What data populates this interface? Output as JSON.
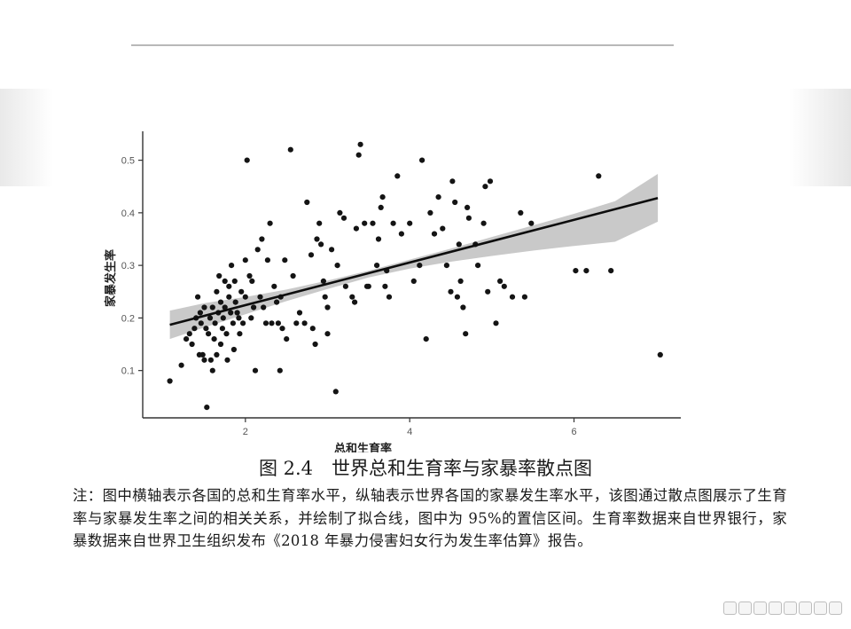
{
  "caption": "图 2.4　世界总和生育率与家暴率散点图",
  "note": "注：图中横轴表示各国的总和生育率水平，纵轴表示世界各国的家暴发生率水平，该图通过散点图展示了生育率与家暴发生率之间的相关关系，并绘制了拟合线，图中为 95%的置信区间。生育率数据来自世界银行，家暴数据来自世界卫生组织发布《2018 年暴力侵害妇女行为发生率估算》报告。",
  "chart_data": {
    "type": "scatter",
    "xlabel": "总和生育率",
    "ylabel": "家暴发生率",
    "xlim": [
      0.75,
      7.3
    ],
    "ylim": [
      0.01,
      0.555
    ],
    "x_ticks": [
      2,
      4,
      6
    ],
    "y_ticks": [
      0.1,
      0.2,
      0.3,
      0.4,
      0.5
    ],
    "x_tick_labels": [
      "2",
      "4",
      "6"
    ],
    "y_tick_labels": [
      "0.1",
      "0.2",
      "0.3",
      "0.4",
      "0.5"
    ],
    "grid": false,
    "fit_line": {
      "x": [
        1.08,
        7.02
      ],
      "y": [
        0.187,
        0.428
      ]
    },
    "confidence_band": {
      "label": "95%",
      "x": [
        1.08,
        1.5,
        2.0,
        2.5,
        3.0,
        3.5,
        4.0,
        4.5,
        5.0,
        5.5,
        6.0,
        6.5,
        7.02
      ],
      "lower": [
        0.16,
        0.182,
        0.207,
        0.232,
        0.255,
        0.277,
        0.294,
        0.307,
        0.318,
        0.328,
        0.337,
        0.345,
        0.383
      ],
      "upper": [
        0.214,
        0.228,
        0.24,
        0.254,
        0.271,
        0.29,
        0.311,
        0.332,
        0.354,
        0.376,
        0.398,
        0.422,
        0.474
      ]
    },
    "points": [
      [
        1.08,
        0.08
      ],
      [
        1.22,
        0.11
      ],
      [
        1.28,
        0.16
      ],
      [
        1.32,
        0.17
      ],
      [
        1.35,
        0.15
      ],
      [
        1.38,
        0.18
      ],
      [
        1.4,
        0.2
      ],
      [
        1.42,
        0.24
      ],
      [
        1.44,
        0.13
      ],
      [
        1.45,
        0.21
      ],
      [
        1.46,
        0.19
      ],
      [
        1.48,
        0.13
      ],
      [
        1.5,
        0.22
      ],
      [
        1.5,
        0.12
      ],
      [
        1.52,
        0.18
      ],
      [
        1.53,
        0.03
      ],
      [
        1.55,
        0.17
      ],
      [
        1.57,
        0.2
      ],
      [
        1.58,
        0.12
      ],
      [
        1.6,
        0.1
      ],
      [
        1.6,
        0.22
      ],
      [
        1.62,
        0.16
      ],
      [
        1.63,
        0.19
      ],
      [
        1.65,
        0.25
      ],
      [
        1.65,
        0.13
      ],
      [
        1.67,
        0.21
      ],
      [
        1.68,
        0.28
      ],
      [
        1.7,
        0.23
      ],
      [
        1.7,
        0.15
      ],
      [
        1.72,
        0.18
      ],
      [
        1.73,
        0.2
      ],
      [
        1.75,
        0.27
      ],
      [
        1.75,
        0.22
      ],
      [
        1.77,
        0.17
      ],
      [
        1.78,
        0.12
      ],
      [
        1.8,
        0.24
      ],
      [
        1.8,
        0.26
      ],
      [
        1.82,
        0.21
      ],
      [
        1.83,
        0.3
      ],
      [
        1.85,
        0.19
      ],
      [
        1.86,
        0.14
      ],
      [
        1.87,
        0.27
      ],
      [
        1.88,
        0.23
      ],
      [
        1.9,
        0.21
      ],
      [
        1.92,
        0.2
      ],
      [
        1.93,
        0.17
      ],
      [
        1.95,
        0.25
      ],
      [
        1.97,
        0.19
      ],
      [
        2.0,
        0.31
      ],
      [
        2.0,
        0.24
      ],
      [
        2.02,
        0.5
      ],
      [
        2.05,
        0.28
      ],
      [
        2.07,
        0.2
      ],
      [
        2.08,
        0.27
      ],
      [
        2.1,
        0.22
      ],
      [
        2.12,
        0.1
      ],
      [
        2.15,
        0.33
      ],
      [
        2.18,
        0.24
      ],
      [
        2.2,
        0.35
      ],
      [
        2.22,
        0.22
      ],
      [
        2.25,
        0.19
      ],
      [
        2.27,
        0.31
      ],
      [
        2.3,
        0.38
      ],
      [
        2.32,
        0.19
      ],
      [
        2.35,
        0.26
      ],
      [
        2.38,
        0.23
      ],
      [
        2.4,
        0.19
      ],
      [
        2.42,
        0.1
      ],
      [
        2.43,
        0.24
      ],
      [
        2.45,
        0.18
      ],
      [
        2.48,
        0.31
      ],
      [
        2.5,
        0.16
      ],
      [
        2.55,
        0.52
      ],
      [
        2.58,
        0.28
      ],
      [
        2.62,
        0.19
      ],
      [
        2.66,
        0.21
      ],
      [
        2.72,
        0.19
      ],
      [
        2.75,
        0.42
      ],
      [
        2.8,
        0.32
      ],
      [
        2.82,
        0.18
      ],
      [
        2.85,
        0.15
      ],
      [
        2.87,
        0.35
      ],
      [
        2.9,
        0.38
      ],
      [
        2.92,
        0.34
      ],
      [
        2.95,
        0.27
      ],
      [
        2.97,
        0.24
      ],
      [
        3.0,
        0.17
      ],
      [
        3.0,
        0.22
      ],
      [
        3.05,
        0.33
      ],
      [
        3.1,
        0.06
      ],
      [
        3.12,
        0.3
      ],
      [
        3.15,
        0.4
      ],
      [
        3.2,
        0.39
      ],
      [
        3.22,
        0.26
      ],
      [
        3.3,
        0.24
      ],
      [
        3.33,
        0.23
      ],
      [
        3.35,
        0.37
      ],
      [
        3.38,
        0.51
      ],
      [
        3.4,
        0.53
      ],
      [
        3.45,
        0.38
      ],
      [
        3.48,
        0.26
      ],
      [
        3.5,
        0.26
      ],
      [
        3.55,
        0.38
      ],
      [
        3.6,
        0.3
      ],
      [
        3.62,
        0.35
      ],
      [
        3.65,
        0.41
      ],
      [
        3.67,
        0.43
      ],
      [
        3.7,
        0.26
      ],
      [
        3.72,
        0.29
      ],
      [
        3.75,
        0.24
      ],
      [
        3.8,
        0.38
      ],
      [
        3.85,
        0.47
      ],
      [
        3.9,
        0.36
      ],
      [
        4.0,
        0.38
      ],
      [
        4.05,
        0.27
      ],
      [
        4.12,
        0.3
      ],
      [
        4.15,
        0.5
      ],
      [
        4.2,
        0.16
      ],
      [
        4.25,
        0.4
      ],
      [
        4.3,
        0.36
      ],
      [
        4.35,
        0.43
      ],
      [
        4.4,
        0.37
      ],
      [
        4.45,
        0.3
      ],
      [
        4.5,
        0.25
      ],
      [
        4.52,
        0.46
      ],
      [
        4.55,
        0.42
      ],
      [
        4.58,
        0.24
      ],
      [
        4.6,
        0.34
      ],
      [
        4.62,
        0.27
      ],
      [
        4.65,
        0.22
      ],
      [
        4.68,
        0.17
      ],
      [
        4.7,
        0.41
      ],
      [
        4.72,
        0.39
      ],
      [
        4.8,
        0.34
      ],
      [
        4.83,
        0.3
      ],
      [
        4.9,
        0.38
      ],
      [
        4.92,
        0.45
      ],
      [
        4.95,
        0.25
      ],
      [
        4.98,
        0.46
      ],
      [
        5.05,
        0.19
      ],
      [
        5.1,
        0.27
      ],
      [
        5.15,
        0.26
      ],
      [
        5.25,
        0.24
      ],
      [
        5.35,
        0.4
      ],
      [
        5.4,
        0.24
      ],
      [
        5.48,
        0.38
      ],
      [
        6.02,
        0.29
      ],
      [
        6.15,
        0.29
      ],
      [
        6.3,
        0.47
      ],
      [
        6.45,
        0.29
      ],
      [
        7.05,
        0.13
      ]
    ]
  }
}
